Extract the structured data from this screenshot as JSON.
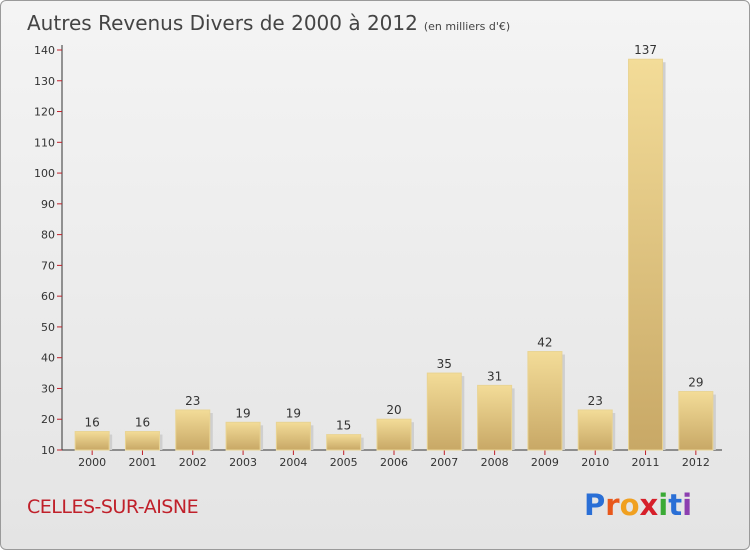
{
  "header": {
    "title": "Autres Revenus Divers de 2000 à 2012",
    "subtitle": "(en milliers d'€)"
  },
  "footer": {
    "commune": "CELLES-SUR-AISNE",
    "logo_letters": [
      "P",
      "r",
      "o",
      "x",
      "i",
      "t",
      "i"
    ],
    "logo_colors": [
      "#2a6fd6",
      "#e8581c",
      "#f0a020",
      "#d61f2a",
      "#3aaa35",
      "#2a6fd6",
      "#8c3fb0"
    ],
    "logo_icon": "proxiti-logo"
  },
  "chart_data": {
    "type": "bar",
    "categories": [
      "2000",
      "2001",
      "2002",
      "2003",
      "2004",
      "2005",
      "2006",
      "2007",
      "2008",
      "2009",
      "2010",
      "2011",
      "2012"
    ],
    "values": [
      16,
      16,
      23,
      19,
      19,
      15,
      20,
      35,
      31,
      42,
      23,
      137,
      29
    ],
    "ylim": [
      10,
      140
    ],
    "yticks": [
      10,
      20,
      30,
      40,
      50,
      60,
      70,
      80,
      90,
      100,
      110,
      120,
      130,
      140
    ],
    "grid": false,
    "legend": "none",
    "colors": {
      "bar": "#e6c97a",
      "bar_light": "#f3dc98",
      "bar_dark": "#c8a866",
      "axis": "#333333",
      "tick_mark": "#c0202a"
    }
  }
}
